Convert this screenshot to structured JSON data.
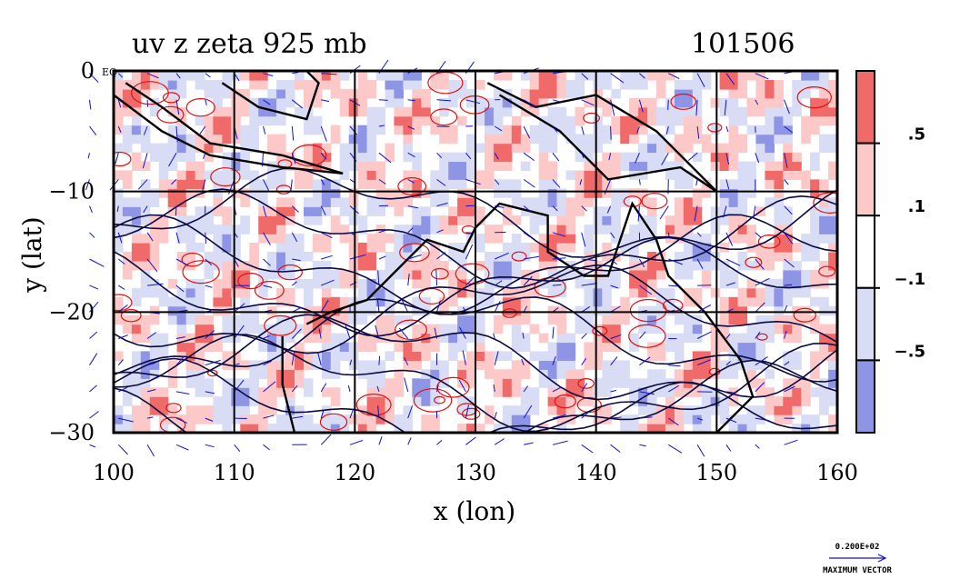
{
  "chart_data": {
    "type": "heatmap",
    "title": "uv z zeta 925 mb",
    "time_label": "101506",
    "xlabel": "x (lon)",
    "ylabel": "y (lat)",
    "xlim": [
      100,
      160
    ],
    "ylim": [
      -30,
      0
    ],
    "x_ticks": [
      "100",
      "110",
      "120",
      "130",
      "140",
      "150",
      "160"
    ],
    "y_ticks": [
      "0",
      "−10",
      "−20",
      "−30"
    ],
    "y_top_suffix": "EQ",
    "grid": true,
    "colorbar": {
      "labels": [
        ".5",
        ".1",
        "−.1",
        "−.5"
      ],
      "bands": [
        "#f06a6a",
        "#fcc8c8",
        "#ffffff",
        "#d8dcf4",
        "#8d95e4"
      ],
      "placement": "right"
    },
    "overlays": [
      "vorticity shading",
      "red/blue vorticity contours",
      "black height contours",
      "blue wind vectors"
    ],
    "vector_key": {
      "value": "0.200E+02",
      "label": "MAXIMUM VECTOR"
    },
    "colors": {
      "positive": "#f06a6a",
      "positive_light": "#fcc8c8",
      "negative_light": "#d8dcf4",
      "negative": "#8d95e4",
      "vectors": "#1010d0",
      "contour_pos": "#e01010",
      "coast": "#000000"
    }
  }
}
